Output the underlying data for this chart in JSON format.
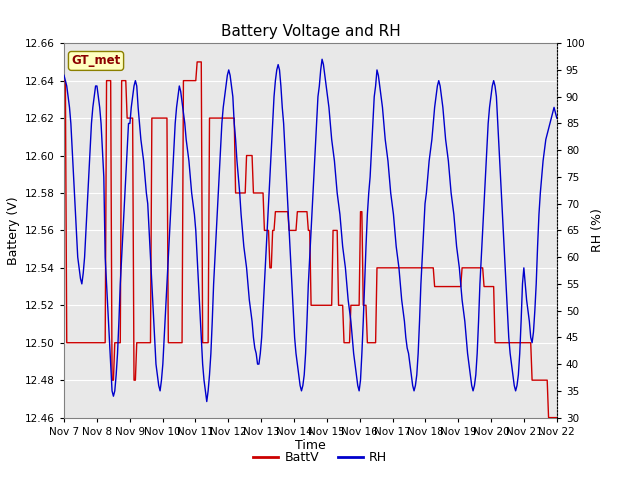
{
  "title": "Battery Voltage and RH",
  "xlabel": "Time",
  "ylabel_left": "Battery (V)",
  "ylabel_right": "RH (%)",
  "annotation_text": "GT_met",
  "ylim_left": [
    12.46,
    12.66
  ],
  "ylim_right": [
    30,
    100
  ],
  "yticks_left": [
    12.46,
    12.48,
    12.5,
    12.52,
    12.54,
    12.56,
    12.58,
    12.6,
    12.62,
    12.64,
    12.66
  ],
  "yticks_right": [
    30,
    35,
    40,
    45,
    50,
    55,
    60,
    65,
    70,
    75,
    80,
    85,
    90,
    95,
    100
  ],
  "xtick_labels": [
    "Nov 7",
    "Nov 8",
    "Nov 9",
    "Nov 10",
    "Nov 11",
    "Nov 12",
    "Nov 13",
    "Nov 14",
    "Nov 15",
    "Nov 16",
    "Nov 17",
    "Nov 18",
    "Nov 19",
    "Nov 20",
    "Nov 21",
    "Nov 22"
  ],
  "color_battv": "#cc0000",
  "color_rh": "#0000cc",
  "legend_labels": [
    "BattV",
    "RH"
  ],
  "plot_bg_color": "#e8e8e8",
  "title_fontsize": 11,
  "axis_label_fontsize": 9,
  "tick_fontsize": 7.5,
  "linewidth": 1.0
}
